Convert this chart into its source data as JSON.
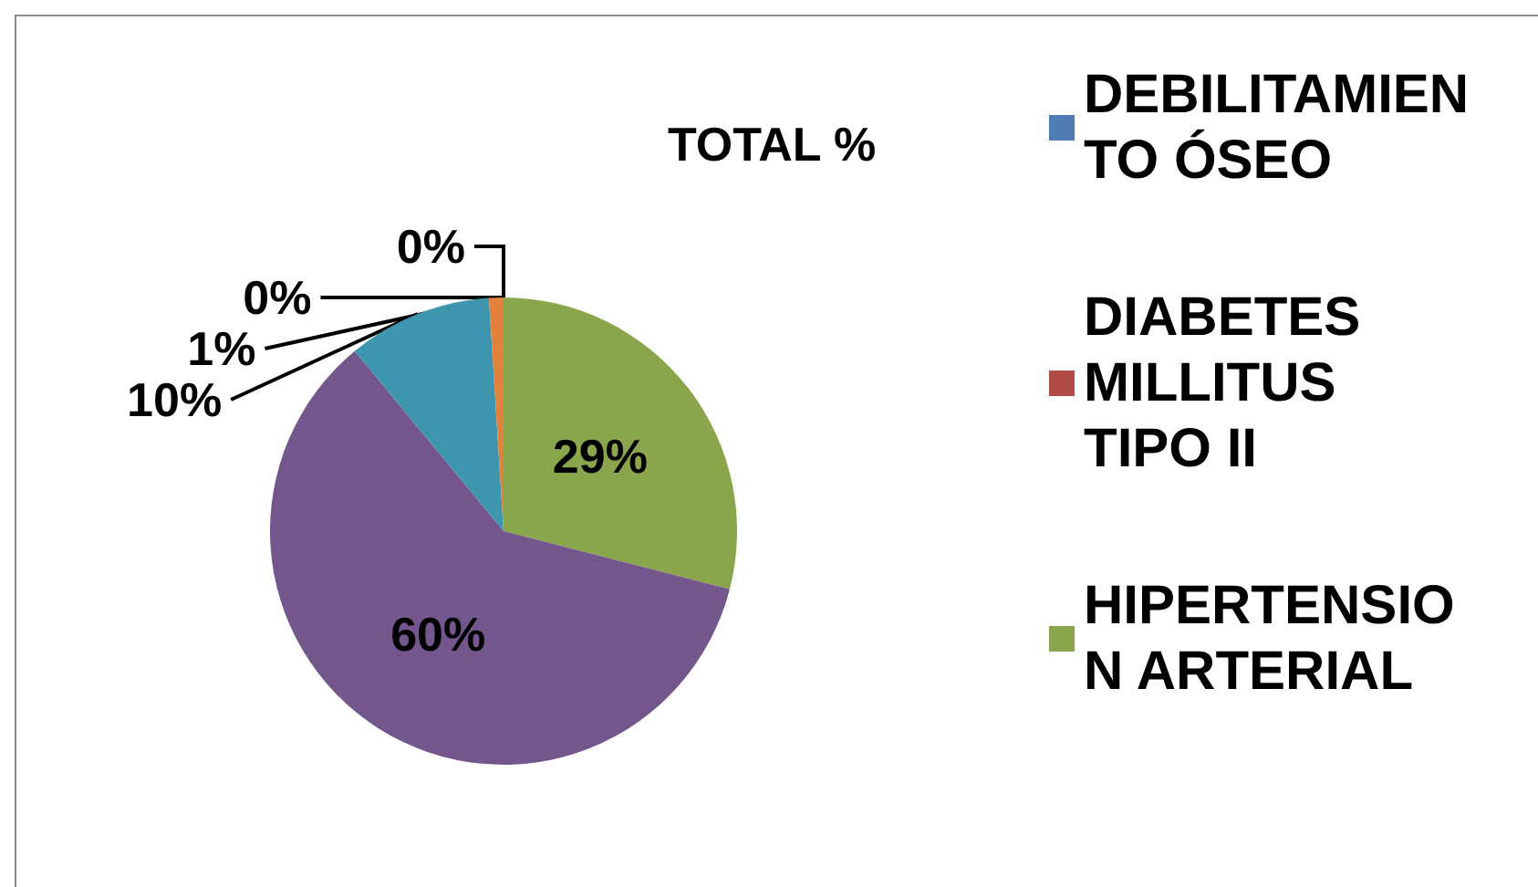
{
  "chart_data": {
    "type": "pie",
    "title": "TOTAL %",
    "categories": [
      "DEBILITAMIENTO ÓSEO",
      "DIABETES MILLITUS TIPO II",
      "HIPERTENSION ARTERIAL",
      null,
      null,
      null
    ],
    "values": [
      0,
      0,
      29,
      60,
      10,
      1
    ],
    "value_labels": [
      "0%",
      "0%",
      "29%",
      "60%",
      "10%",
      "1%"
    ],
    "colors": [
      "#4f7bb5",
      "#b04a46",
      "#8aa64d",
      "#72568c",
      "#3e96ae",
      "#e0823b"
    ],
    "legend": "right"
  }
}
